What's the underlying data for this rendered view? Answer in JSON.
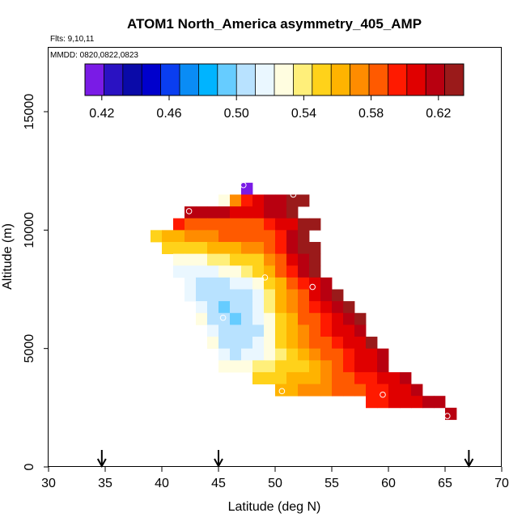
{
  "chart_data": {
    "type": "heatmap",
    "title": "ATOM1 North_America asymmetry_405_AMP",
    "flights_text": "Flts: 9,10,11",
    "dates_text": "MMDD: 0820,0822,0823",
    "xlabel": "Latitude (deg N)",
    "ylabel": "Altitude (m)",
    "xlim": [
      30,
      70
    ],
    "ylim": [
      0,
      17700
    ],
    "x_ticks": [
      "30",
      "35",
      "40",
      "45",
      "50",
      "55",
      "60",
      "65",
      "70"
    ],
    "y_ticks": [
      "0",
      "5000",
      "10000",
      "15000"
    ],
    "colorbar": {
      "range": [
        0.41,
        0.635
      ],
      "tick_values": [
        0.42,
        0.46,
        0.5,
        0.54,
        0.58,
        0.62
      ],
      "tick_labels": [
        "0.42",
        "0.46",
        "0.50",
        "0.54",
        "0.58",
        "0.62"
      ],
      "colors": [
        "#7a1be6",
        "#2a12c2",
        "#0a0aa8",
        "#0000cc",
        "#0a3ef0",
        "#0a8cf5",
        "#00b4ff",
        "#66ccff",
        "#b8e2ff",
        "#eaf7ff",
        "#fffde0",
        "#ffef7a",
        "#ffd21a",
        "#ffb300",
        "#ff8c00",
        "#ff5a00",
        "#ff1a00",
        "#e00000",
        "#b80010",
        "#9a1a1a"
      ]
    },
    "arrows_at_latitude": [
      34.7,
      45,
      67.1
    ],
    "grid": false,
    "bin_width_deg": 1,
    "bin_height_m": 500,
    "rows": [
      {
        "alt": 11750,
        "lat_start": 47,
        "values": [
          0.41
        ]
      },
      {
        "alt": 11250,
        "lat_start": 45,
        "values": [
          0.525,
          0.57,
          0.6,
          0.61,
          0.615,
          0.62,
          0.63,
          0.635
        ]
      },
      {
        "alt": 10750,
        "lat_start": 42,
        "values": [
          0.62,
          0.62,
          0.62,
          0.615,
          0.61,
          0.61,
          0.61,
          0.62,
          0.62,
          0.625
        ]
      },
      {
        "alt": 10250,
        "lat_start": 41,
        "values": [
          0.6,
          0.59,
          0.59,
          0.59,
          0.585,
          0.58,
          0.59,
          0.59,
          0.6,
          0.61,
          0.61,
          0.625,
          0.635
        ]
      },
      {
        "alt": 9750,
        "lat_start": 39,
        "values": [
          0.555,
          0.56,
          0.565,
          0.57,
          0.57,
          0.575,
          0.58,
          0.58,
          0.58,
          0.585,
          0.59,
          0.6,
          0.62,
          0.625
        ]
      },
      {
        "alt": 9250,
        "lat_start": 40,
        "values": [
          0.545,
          0.55,
          0.55,
          0.555,
          0.56,
          0.56,
          0.565,
          0.57,
          0.575,
          0.585,
          0.6,
          0.615,
          0.625,
          0.635
        ]
      },
      {
        "alt": 8750,
        "lat_start": 41,
        "values": [
          0.53,
          0.525,
          0.53,
          0.535,
          0.54,
          0.545,
          0.55,
          0.55,
          0.575,
          0.59,
          0.61,
          0.62,
          0.635
        ]
      },
      {
        "alt": 8250,
        "lat_start": 41,
        "values": [
          0.52,
          0.515,
          0.515,
          0.52,
          0.525,
          0.53,
          0.535,
          0.545,
          0.565,
          0.585,
          0.6,
          0.615,
          0.625
        ]
      },
      {
        "alt": 7750,
        "lat_start": 42,
        "values": [
          0.515,
          0.51,
          0.51,
          0.51,
          0.515,
          0.52,
          0.53,
          0.545,
          0.565,
          0.58,
          0.595,
          0.61,
          0.62
        ]
      },
      {
        "alt": 7250,
        "lat_start": 42,
        "values": [
          0.52,
          0.505,
          0.5,
          0.5,
          0.505,
          0.51,
          0.515,
          0.535,
          0.56,
          0.575,
          0.59,
          0.605,
          0.615,
          0.625
        ]
      },
      {
        "alt": 6750,
        "lat_start": 43,
        "values": [
          0.52,
          0.5,
          0.498,
          0.5,
          0.505,
          0.515,
          0.535,
          0.56,
          0.575,
          0.585,
          0.6,
          0.61,
          0.62,
          0.625
        ]
      },
      {
        "alt": 6250,
        "lat_start": 43,
        "values": [
          0.525,
          0.51,
          0.5,
          0.497,
          0.505,
          0.515,
          0.525,
          0.545,
          0.565,
          0.58,
          0.59,
          0.6,
          0.61,
          0.615,
          0.625
        ]
      },
      {
        "alt": 5750,
        "lat_start": 44,
        "values": [
          0.52,
          0.5,
          0.5,
          0.5,
          0.51,
          0.525,
          0.545,
          0.565,
          0.575,
          0.585,
          0.595,
          0.605,
          0.61,
          0.62
        ]
      },
      {
        "alt": 5250,
        "lat_start": 44,
        "values": [
          0.525,
          0.51,
          0.5,
          0.51,
          0.52,
          0.53,
          0.545,
          0.56,
          0.57,
          0.58,
          0.59,
          0.6,
          0.605,
          0.61,
          0.625
        ]
      },
      {
        "alt": 4750,
        "lat_start": 45,
        "values": [
          0.515,
          0.51,
          0.515,
          0.52,
          0.53,
          0.535,
          0.55,
          0.56,
          0.57,
          0.58,
          0.59,
          0.6,
          0.605,
          0.61,
          0.62
        ]
      },
      {
        "alt": 4250,
        "lat_start": 45,
        "values": [
          0.525,
          0.525,
          0.53,
          0.535,
          0.54,
          0.545,
          0.55,
          0.555,
          0.565,
          0.575,
          0.585,
          0.595,
          0.605,
          0.61,
          0.615
        ]
      },
      {
        "alt": 3750,
        "lat_start": 48,
        "values": [
          0.545,
          0.55,
          0.555,
          0.56,
          0.56,
          0.565,
          0.575,
          0.58,
          0.59,
          0.595,
          0.6,
          0.605,
          0.61,
          0.615
        ]
      },
      {
        "alt": 3250,
        "lat_start": 50,
        "values": [
          0.56,
          0.565,
          0.57,
          0.575,
          0.575,
          0.58,
          0.585,
          0.59,
          0.595,
          0.6,
          0.605,
          0.61,
          0.615
        ]
      },
      {
        "alt": 2750,
        "lat_start": 58,
        "values": [
          0.595,
          0.6,
          0.605,
          0.605,
          0.61,
          0.615,
          0.62
        ]
      },
      {
        "alt": 2250,
        "lat_start": 65,
        "values": [
          0.615
        ]
      }
    ],
    "points": [
      {
        "lat": 47.2,
        "alt": 11900
      },
      {
        "lat": 51.6,
        "alt": 11500
      },
      {
        "lat": 42.4,
        "alt": 10800
      },
      {
        "lat": 49.1,
        "alt": 8000
      },
      {
        "lat": 53.3,
        "alt": 7600
      },
      {
        "lat": 45.4,
        "alt": 6300
      },
      {
        "lat": 50.6,
        "alt": 3200
      },
      {
        "lat": 59.5,
        "alt": 3050
      },
      {
        "lat": 65.2,
        "alt": 2150
      }
    ]
  }
}
